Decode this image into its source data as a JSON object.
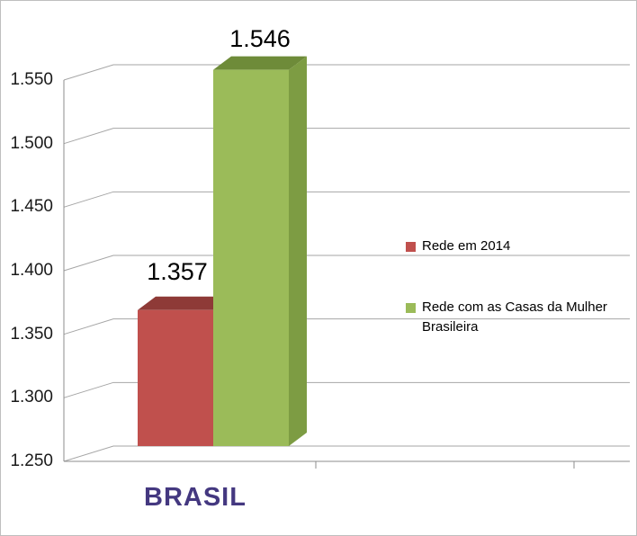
{
  "chart_data": {
    "type": "bar",
    "view": "3d",
    "title": "",
    "categories": [
      "BRASIL"
    ],
    "series": [
      {
        "name": "Rede em 2014",
        "values": [
          1357
        ],
        "data_label": "1.357",
        "color": "#c0504d",
        "top_color": "#8e3a37",
        "side_color": "#a04340"
      },
      {
        "name": "Rede com as Casas da Mulher Brasileira",
        "values": [
          1546
        ],
        "data_label": "1.546",
        "color": "#9bbb59",
        "top_color": "#6e8b39",
        "side_color": "#7d9c43"
      }
    ],
    "ylim": [
      1250,
      1550
    ],
    "yticks": [
      {
        "value": 1250,
        "label": "1.250"
      },
      {
        "value": 1300,
        "label": "1.300"
      },
      {
        "value": 1350,
        "label": "1.350"
      },
      {
        "value": 1400,
        "label": "1.400"
      },
      {
        "value": 1450,
        "label": "1.450"
      },
      {
        "value": 1500,
        "label": "1.500"
      },
      {
        "value": 1550,
        "label": "1.550"
      }
    ],
    "xlabel": "",
    "ylabel": "",
    "grid": true,
    "legend_position": "right"
  },
  "colors": {
    "grid": "#a6a6a6",
    "axis": "#8c8c8c",
    "border": "#bfbfbf",
    "background": "#ffffff",
    "category_label": "#443880",
    "data_label": "#000000"
  }
}
